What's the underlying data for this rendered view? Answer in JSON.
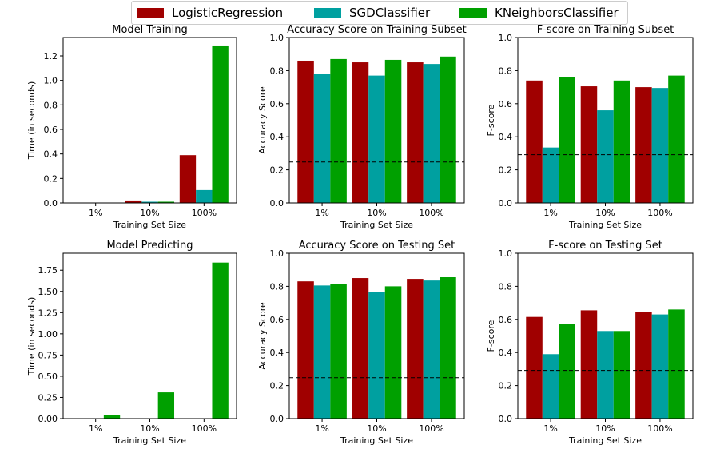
{
  "legend": [
    {
      "name": "LogisticRegression",
      "color": "#a00000"
    },
    {
      "name": "SGDClassifier",
      "color": "#00a0a0"
    },
    {
      "name": "KNeighborsClassifier",
      "color": "#00a000"
    }
  ],
  "chart_data": [
    {
      "type": "bar",
      "title": "Model Training",
      "xlabel": "Training Set Size",
      "ylabel": "Time (in seconds)",
      "categories": [
        "1%",
        "10%",
        "100%"
      ],
      "ylim": [
        0,
        1.35
      ],
      "yticks": [
        0.0,
        0.2,
        0.4,
        0.6,
        0.8,
        1.0,
        1.2
      ],
      "ytick_labels": [
        "0.0",
        "0.2",
        "0.4",
        "0.6",
        "0.8",
        "1.0",
        "1.2"
      ],
      "series": [
        {
          "name": "LogisticRegression",
          "values": [
            0.002,
            0.02,
            0.39
          ]
        },
        {
          "name": "SGDClassifier",
          "values": [
            0.001,
            0.01,
            0.105
          ]
        },
        {
          "name": "KNeighborsClassifier",
          "values": [
            0.001,
            0.01,
            1.285
          ]
        }
      ]
    },
    {
      "type": "bar",
      "title": "Accuracy Score on Training Subset",
      "xlabel": "Training Set Size",
      "ylabel": "Accuracy Score",
      "categories": [
        "1%",
        "10%",
        "100%"
      ],
      "ylim": [
        0,
        1.0
      ],
      "yticks": [
        0.0,
        0.2,
        0.4,
        0.6,
        0.8,
        1.0
      ],
      "ytick_labels": [
        "0.0",
        "0.2",
        "0.4",
        "0.6",
        "0.8",
        "1.0"
      ],
      "baseline": 0.2478,
      "series": [
        {
          "name": "LogisticRegression",
          "values": [
            0.86,
            0.85,
            0.85
          ]
        },
        {
          "name": "SGDClassifier",
          "values": [
            0.78,
            0.77,
            0.84
          ]
        },
        {
          "name": "KNeighborsClassifier",
          "values": [
            0.87,
            0.865,
            0.885
          ]
        }
      ]
    },
    {
      "type": "bar",
      "title": "F-score on Training Subset",
      "xlabel": "Training Set Size",
      "ylabel": "F-score",
      "categories": [
        "1%",
        "10%",
        "100%"
      ],
      "ylim": [
        0,
        1.0
      ],
      "yticks": [
        0.0,
        0.2,
        0.4,
        0.6,
        0.8,
        1.0
      ],
      "ytick_labels": [
        "0.0",
        "0.2",
        "0.4",
        "0.6",
        "0.8",
        "1.0"
      ],
      "baseline": 0.2917,
      "series": [
        {
          "name": "LogisticRegression",
          "values": [
            0.74,
            0.705,
            0.7
          ]
        },
        {
          "name": "SGDClassifier",
          "values": [
            0.335,
            0.56,
            0.695
          ]
        },
        {
          "name": "KNeighborsClassifier",
          "values": [
            0.76,
            0.74,
            0.77
          ]
        }
      ]
    },
    {
      "type": "bar",
      "title": "Model Predicting",
      "xlabel": "Training Set Size",
      "ylabel": "Time (in seconds)",
      "categories": [
        "1%",
        "10%",
        "100%"
      ],
      "ylim": [
        0,
        1.95
      ],
      "yticks": [
        0.0,
        0.25,
        0.5,
        0.75,
        1.0,
        1.25,
        1.5,
        1.75
      ],
      "ytick_labels": [
        "0.00",
        "0.25",
        "0.50",
        "0.75",
        "1.00",
        "1.25",
        "1.50",
        "1.75"
      ],
      "series": [
        {
          "name": "LogisticRegression",
          "values": [
            0.001,
            0.001,
            0.002
          ]
        },
        {
          "name": "SGDClassifier",
          "values": [
            0.001,
            0.001,
            0.002
          ]
        },
        {
          "name": "KNeighborsClassifier",
          "values": [
            0.04,
            0.31,
            1.84
          ]
        }
      ]
    },
    {
      "type": "bar",
      "title": "Accuracy Score on Testing Set",
      "xlabel": "Training Set Size",
      "ylabel": "Accuracy Score",
      "categories": [
        "1%",
        "10%",
        "100%"
      ],
      "ylim": [
        0,
        1.0
      ],
      "yticks": [
        0.0,
        0.2,
        0.4,
        0.6,
        0.8,
        1.0
      ],
      "ytick_labels": [
        "0.0",
        "0.2",
        "0.4",
        "0.6",
        "0.8",
        "1.0"
      ],
      "baseline": 0.2478,
      "series": [
        {
          "name": "LogisticRegression",
          "values": [
            0.83,
            0.85,
            0.845
          ]
        },
        {
          "name": "SGDClassifier",
          "values": [
            0.805,
            0.765,
            0.835
          ]
        },
        {
          "name": "KNeighborsClassifier",
          "values": [
            0.815,
            0.8,
            0.855
          ]
        }
      ]
    },
    {
      "type": "bar",
      "title": "F-score on Testing Set",
      "xlabel": "Training Set Size",
      "ylabel": "F-score",
      "categories": [
        "1%",
        "10%",
        "100%"
      ],
      "ylim": [
        0,
        1.0
      ],
      "yticks": [
        0.0,
        0.2,
        0.4,
        0.6,
        0.8,
        1.0
      ],
      "ytick_labels": [
        "0.0",
        "0.2",
        "0.4",
        "0.6",
        "0.8",
        "1.0"
      ],
      "baseline": 0.2917,
      "series": [
        {
          "name": "LogisticRegression",
          "values": [
            0.615,
            0.655,
            0.645
          ]
        },
        {
          "name": "SGDClassifier",
          "values": [
            0.39,
            0.53,
            0.63
          ]
        },
        {
          "name": "KNeighborsClassifier",
          "values": [
            0.57,
            0.53,
            0.66
          ]
        }
      ]
    }
  ]
}
